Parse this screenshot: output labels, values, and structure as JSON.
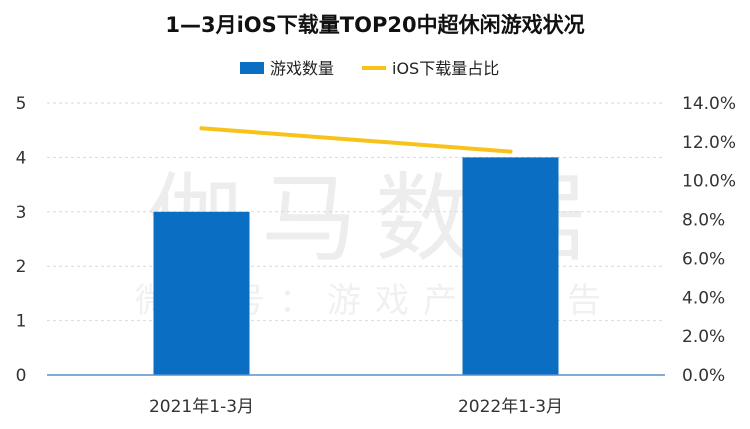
{
  "watermark": {
    "main": "伽马数据",
    "sub": "微信号：游戏产业报告"
  },
  "colors": {
    "bar": "#0a6ec2",
    "line": "#f7c31a",
    "grid": "#d9d9d9",
    "axis": "#5b8fc9"
  },
  "chart_data": {
    "type": "bar",
    "title": "1—3月iOS下载量TOP20中超休闲游戏状况",
    "categories": [
      "2021年1-3月",
      "2022年1-3月"
    ],
    "series": [
      {
        "name": "游戏数量",
        "kind": "bar",
        "axis": "left",
        "values": [
          3,
          4
        ]
      },
      {
        "name": "iOS下载量占比",
        "kind": "line",
        "axis": "right",
        "values": [
          12.7,
          11.5
        ]
      }
    ],
    "ylim": [
      0,
      5
    ],
    "yticks": [
      "0",
      "1",
      "2",
      "3",
      "4",
      "5"
    ],
    "y2lim": [
      0,
      14
    ],
    "y2ticks": [
      "0.0%",
      "2.0%",
      "4.0%",
      "6.0%",
      "8.0%",
      "10.0%",
      "12.0%",
      "14.0%"
    ],
    "grid": true,
    "legend": "top-center"
  }
}
